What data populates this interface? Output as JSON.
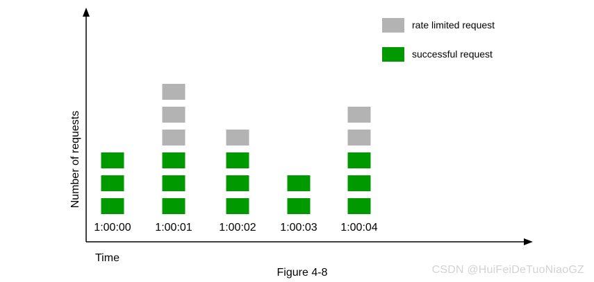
{
  "chart_data": {
    "type": "bar",
    "stacked": true,
    "unit_blocks": true,
    "categories": [
      "1:00:00",
      "1:00:01",
      "1:00:02",
      "1:00:03",
      "1:00:04"
    ],
    "series": [
      {
        "name": "successful request",
        "values": [
          3,
          3,
          3,
          2,
          3
        ],
        "color": "#009900"
      },
      {
        "name": "rate limited request",
        "values": [
          0,
          3,
          1,
          0,
          2
        ],
        "color": "#b3b3b3"
      }
    ],
    "xlabel": "Time",
    "ylabel": "Number of requests",
    "ylim": [
      0,
      6
    ],
    "grid": false,
    "legend_position": "top-right",
    "legend_order": [
      1,
      0
    ],
    "caption": "Figure 4-8"
  },
  "watermark": "CSDN @HuiFeiDeTuoNiaoGZ"
}
